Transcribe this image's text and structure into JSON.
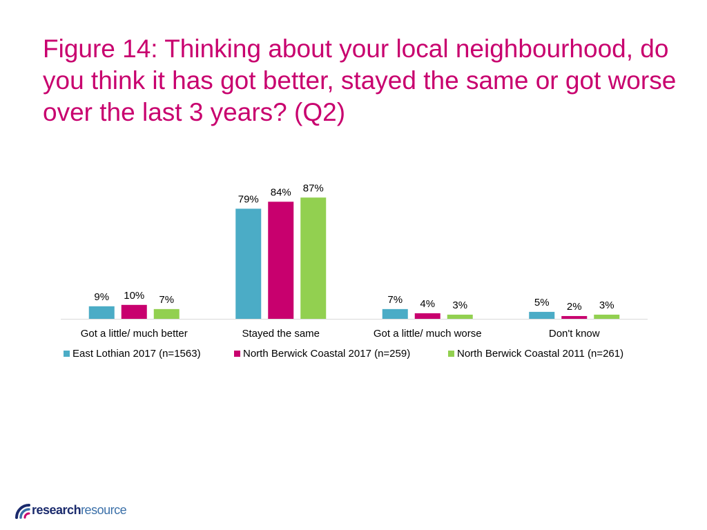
{
  "title": "Figure 14: Thinking about your local neighbourhood, do you think it has got better, stayed the same or got worse over the last 3 years? (Q2)",
  "logo": {
    "text_bold": "research",
    "text_light": "resource",
    "icon": "logo-swirl-icon"
  },
  "colors": {
    "title": "#c8006e",
    "east_lothian": "#4bacc6",
    "nbc_2017": "#c8006e",
    "nbc_2011": "#92d050",
    "axis": "#d9d9d9",
    "text": "#000000"
  },
  "chart_data": {
    "type": "bar",
    "categories": [
      "Got a little/ much better",
      "Stayed the same",
      "Got a little/ much worse",
      "Don't know"
    ],
    "series": [
      {
        "name": "East Lothian 2017 (n=1563)",
        "values": [
          9,
          79,
          7,
          5
        ],
        "labels": [
          "9%",
          "79%",
          "7%",
          "5%"
        ],
        "color": "#4bacc6"
      },
      {
        "name": "North Berwick Coastal 2017 (n=259)",
        "values": [
          10,
          84,
          4,
          2
        ],
        "labels": [
          "10%",
          "84%",
          "4%",
          "2%"
        ],
        "color": "#c8006e"
      },
      {
        "name": "North Berwick Coastal 2011 (n=261)",
        "values": [
          7,
          87,
          3,
          3
        ],
        "labels": [
          "7%",
          "87%",
          "3%",
          "3%"
        ],
        "color": "#92d050"
      }
    ],
    "ylim": [
      0,
      100
    ],
    "unit": "%",
    "grid": false,
    "legend_position": "bottom",
    "xlabel": "",
    "ylabel": ""
  }
}
